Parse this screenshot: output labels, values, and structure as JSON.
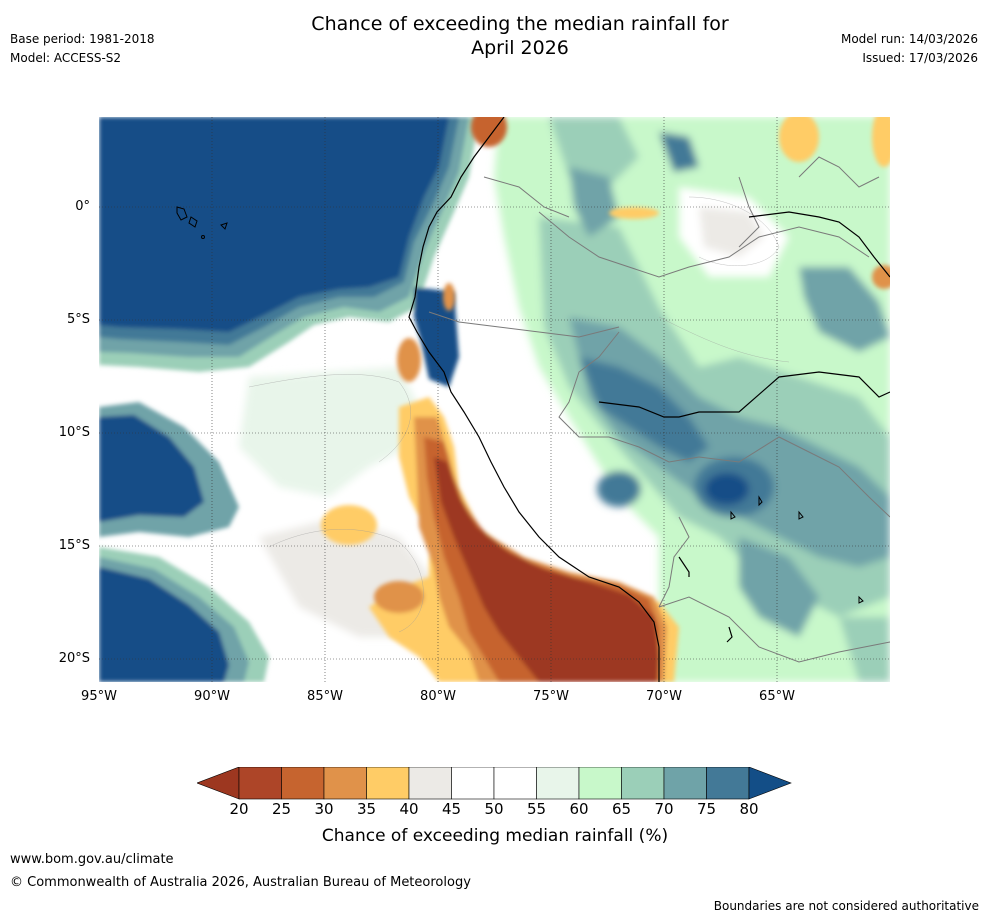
{
  "header": {
    "title_line1": "Chance of exceeding the median rainfall for",
    "title_line2": "April 2026",
    "base_period": "Base period: 1981-2018",
    "model": "Model: ACCESS-S2",
    "model_run": "Model run: 14/03/2026",
    "issued": "Issued: 17/03/2026"
  },
  "map": {
    "lat_ticks": [
      "0°",
      "5°S",
      "10°S",
      "15°S",
      "20°S"
    ],
    "lon_ticks": [
      "95°W",
      "90°W",
      "85°W",
      "80°W",
      "75°W",
      "70°W",
      "65°W"
    ],
    "colors": {
      "ocean_wet": "#134e87",
      "very_dry": "#9d3720",
      "dry": "#c6642f",
      "moderate_dry": "#e0924a",
      "light_dry": "#ffcc66",
      "neutral_grey": "#eceae6",
      "neutral": "#ffffff",
      "light_wet": "#e8f5ea",
      "wet": "#c8f8ca",
      "moderate_wet": "#9bcfb8",
      "wetter": "#6fa3a8",
      "very_wet": "#437997"
    }
  },
  "colorbar": {
    "ticks": [
      "20",
      "25",
      "30",
      "35",
      "40",
      "45",
      "50",
      "55",
      "60",
      "65",
      "70",
      "75",
      "80"
    ],
    "colors": [
      "#ad4528",
      "#c6642f",
      "#e0924a",
      "#ffcc66",
      "#eceae6",
      "#ffffff",
      "#ffffff",
      "#e8f5ea",
      "#c8f8ca",
      "#9bcfb8",
      "#6fa3a8",
      "#437997"
    ],
    "low_color": "#9d3720",
    "high_color": "#134e87",
    "label": "Chance of exceeding median rainfall (%)"
  },
  "footer": {
    "url": "www.bom.gov.au/climate",
    "copyright": "© Commonwealth of Australia 2026, Australian Bureau of Meteorology",
    "disclaimer": "Boundaries are not considered authoritative"
  }
}
